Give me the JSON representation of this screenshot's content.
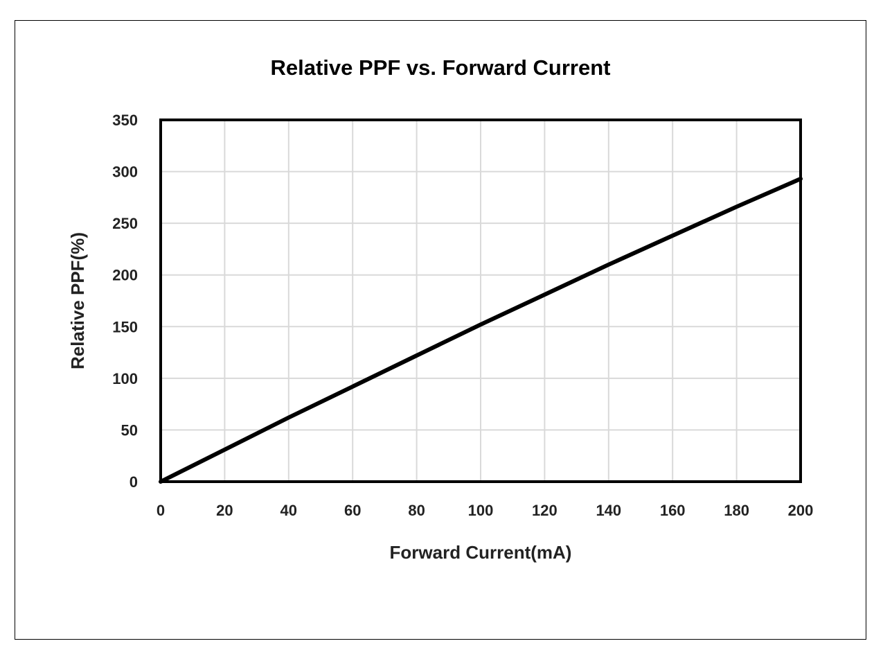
{
  "chart_data": {
    "type": "line",
    "title": "Relative PPF vs. Forward Current",
    "xlabel": "Forward Current(mA)",
    "ylabel": "Relative PPF(%)",
    "xlim": [
      0,
      200
    ],
    "ylim": [
      0,
      350
    ],
    "x_ticks": [
      0,
      20,
      40,
      60,
      80,
      100,
      120,
      140,
      160,
      180,
      200
    ],
    "y_ticks": [
      0,
      50,
      100,
      150,
      200,
      250,
      300,
      350
    ],
    "grid": true,
    "legend": "none",
    "series": [
      {
        "color": "#000000",
        "x": [
          0,
          20,
          40,
          60,
          80,
          100,
          120,
          140,
          160,
          180,
          200
        ],
        "y": [
          0,
          31,
          62,
          92,
          122,
          152,
          181,
          210,
          238,
          266,
          293
        ]
      }
    ]
  },
  "colors": {
    "grid": "#d9d9d9",
    "line": "#000000",
    "plot_border": "#000000"
  }
}
